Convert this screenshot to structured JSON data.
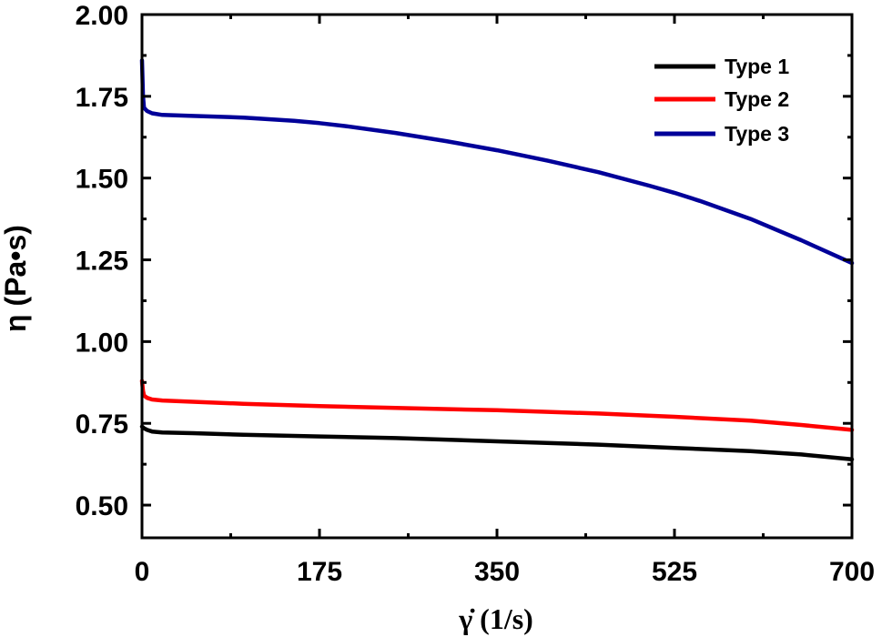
{
  "chart_data": {
    "type": "line",
    "title": "",
    "xlabel": "γ̇ (1/s)",
    "ylabel": "η (Pa•s)",
    "xlim": [
      0,
      700
    ],
    "ylim": [
      0.4,
      2.0
    ],
    "xticks": [
      "0",
      "175",
      "350",
      "525",
      "700"
    ],
    "yticks": [
      "0.50",
      "0.75",
      "1.00",
      "1.25",
      "1.50",
      "1.75",
      "2.00"
    ],
    "grid": false,
    "legend_position": "top-right",
    "series": [
      {
        "name": "Type 1",
        "color": "#000000",
        "x": [
          0,
          2,
          5,
          10,
          20,
          50,
          100,
          175,
          250,
          350,
          450,
          525,
          600,
          650,
          700
        ],
        "y": [
          0.74,
          0.735,
          0.73,
          0.725,
          0.722,
          0.72,
          0.715,
          0.71,
          0.705,
          0.695,
          0.685,
          0.675,
          0.665,
          0.655,
          0.64
        ]
      },
      {
        "name": "Type 2",
        "color": "#ff0000",
        "x": [
          0,
          1,
          2,
          5,
          10,
          20,
          50,
          100,
          175,
          250,
          350,
          450,
          525,
          600,
          650,
          700
        ],
        "y": [
          0.88,
          0.85,
          0.835,
          0.828,
          0.823,
          0.82,
          0.816,
          0.81,
          0.803,
          0.797,
          0.79,
          0.78,
          0.77,
          0.758,
          0.745,
          0.73
        ]
      },
      {
        "name": "Type 3",
        "color": "#000099",
        "x": [
          0,
          1,
          2,
          5,
          10,
          20,
          50,
          100,
          150,
          175,
          200,
          250,
          300,
          350,
          400,
          450,
          500,
          525,
          550,
          600,
          650,
          700
        ],
        "y": [
          1.86,
          1.75,
          1.715,
          1.705,
          1.698,
          1.693,
          1.69,
          1.685,
          1.675,
          1.668,
          1.659,
          1.638,
          1.613,
          1.585,
          1.553,
          1.518,
          1.477,
          1.455,
          1.43,
          1.375,
          1.31,
          1.24
        ]
      }
    ]
  }
}
